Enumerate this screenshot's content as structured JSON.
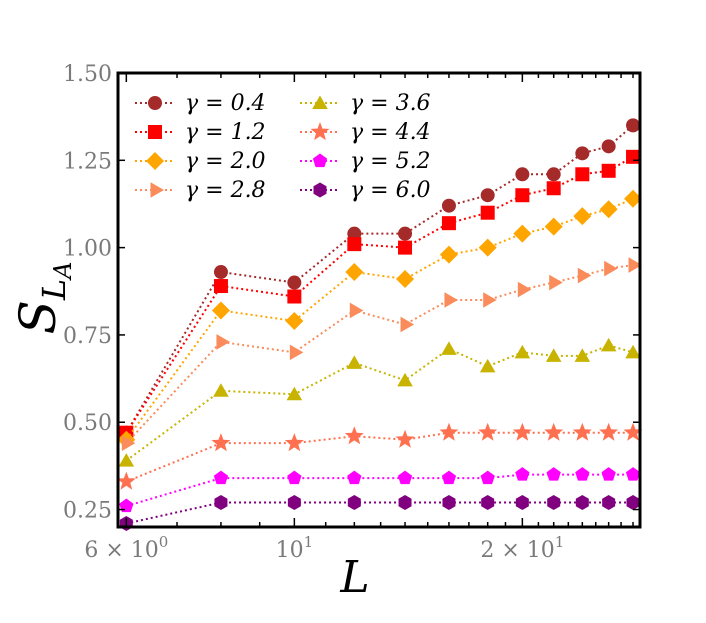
{
  "chart_data": {
    "type": "line",
    "xscale": "log",
    "xlim": [
      5.85,
      28.6
    ],
    "ylim": [
      0.2,
      1.5
    ],
    "xlabel": "L",
    "ylabel": "S",
    "ylabel_sub": "L",
    "ylabel_subsub": "A",
    "yticks": [
      0.25,
      0.5,
      0.75,
      1.0,
      1.25,
      1.5
    ],
    "ytick_labels": [
      "0.25",
      "0.50",
      "0.75",
      "1.00",
      "1.25",
      "1.50"
    ],
    "xticks": [
      {
        "value": 6,
        "mantissa": "6",
        "exponent": "0"
      },
      {
        "value": 10,
        "mantissa": "",
        "exponent": "1"
      },
      {
        "value": 20,
        "mantissa": "2",
        "exponent": "1"
      }
    ],
    "x": [
      6,
      8,
      10,
      12,
      14,
      16,
      18,
      20,
      22,
      24,
      26,
      28
    ],
    "series": [
      {
        "name": "γ = 0.4",
        "color": "#a52a2a",
        "marker": "circle",
        "values": [
          0.47,
          0.93,
          0.9,
          1.04,
          1.04,
          1.12,
          1.15,
          1.21,
          1.21,
          1.27,
          1.29,
          1.35
        ]
      },
      {
        "name": "γ = 1.2",
        "color": "#ff0000",
        "marker": "square",
        "values": [
          0.47,
          0.89,
          0.86,
          1.01,
          1.0,
          1.07,
          1.1,
          1.15,
          1.17,
          1.21,
          1.22,
          1.26
        ]
      },
      {
        "name": "γ = 2.0",
        "color": "#ffa500",
        "marker": "diamond",
        "values": [
          0.45,
          0.82,
          0.79,
          0.93,
          0.91,
          0.98,
          1.0,
          1.04,
          1.06,
          1.09,
          1.11,
          1.14
        ]
      },
      {
        "name": "γ = 2.8",
        "color": "#fa8b5a",
        "marker": "triangle-right",
        "values": [
          0.44,
          0.73,
          0.7,
          0.82,
          0.78,
          0.85,
          0.85,
          0.88,
          0.9,
          0.92,
          0.94,
          0.95
        ]
      },
      {
        "name": "γ = 3.6",
        "color": "#c8b400",
        "marker": "triangle-up",
        "values": [
          0.39,
          0.59,
          0.58,
          0.67,
          0.62,
          0.71,
          0.66,
          0.7,
          0.69,
          0.69,
          0.72,
          0.7
        ]
      },
      {
        "name": "γ = 4.4",
        "color": "#ff7050",
        "marker": "star",
        "values": [
          0.33,
          0.44,
          0.44,
          0.46,
          0.45,
          0.47,
          0.47,
          0.47,
          0.47,
          0.47,
          0.47,
          0.47
        ]
      },
      {
        "name": "γ = 5.2",
        "color": "#ff00ff",
        "marker": "pentagon",
        "values": [
          0.26,
          0.34,
          0.34,
          0.34,
          0.34,
          0.34,
          0.34,
          0.35,
          0.35,
          0.35,
          0.35,
          0.35
        ]
      },
      {
        "name": "γ = 6.0",
        "color": "#800080",
        "marker": "hexagon",
        "values": [
          0.21,
          0.27,
          0.27,
          0.27,
          0.27,
          0.27,
          0.27,
          0.27,
          0.27,
          0.27,
          0.27,
          0.27
        ]
      }
    ],
    "legend": {
      "location": "top-left",
      "columns": 2
    },
    "grid": false
  }
}
